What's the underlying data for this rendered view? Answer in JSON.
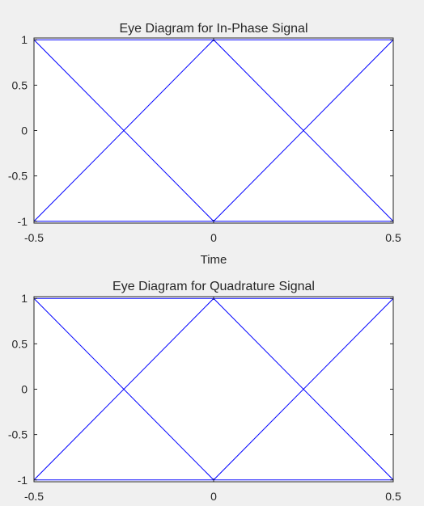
{
  "colors": {
    "background": "#f0f0f0",
    "plot_background": "#ffffff",
    "axis": "#262626",
    "trace": "#0000ff"
  },
  "chart_data": [
    {
      "type": "line",
      "title": "Eye Diagram for In-Phase Signal",
      "xlabel": "Time",
      "ylabel": "",
      "xlim": [
        -0.5,
        0.5
      ],
      "ylim": [
        -1.02,
        1.02
      ],
      "xticks": [
        -0.5,
        0,
        0.5
      ],
      "xtick_labels": [
        "-0.5",
        "0",
        "0.5"
      ],
      "yticks": [
        1,
        0.5,
        0,
        -0.5,
        -1
      ],
      "ytick_labels": [
        "1",
        "0.5",
        "0",
        "-0.5",
        "-1"
      ],
      "grid": false,
      "series": [
        {
          "x": [
            -0.5,
            0,
            0.5
          ],
          "y": [
            1,
            1,
            1
          ]
        },
        {
          "x": [
            -0.5,
            0,
            0.5
          ],
          "y": [
            1,
            -1,
            1
          ]
        },
        {
          "x": [
            -0.5,
            0,
            0.5
          ],
          "y": [
            -1,
            1,
            -1
          ]
        },
        {
          "x": [
            -0.5,
            0,
            0.5
          ],
          "y": [
            -1,
            -1,
            -1
          ]
        }
      ]
    },
    {
      "type": "line",
      "title": "Eye Diagram for Quadrature Signal",
      "xlabel": "",
      "ylabel": "",
      "xlim": [
        -0.5,
        0.5
      ],
      "ylim": [
        -1.02,
        1.02
      ],
      "xticks": [
        -0.5,
        0,
        0.5
      ],
      "xtick_labels": [
        "-0.5",
        "0",
        "0.5"
      ],
      "yticks": [
        1,
        0.5,
        0,
        -0.5,
        -1
      ],
      "ytick_labels": [
        "1",
        "0.5",
        "0",
        "-0.5",
        "-1"
      ],
      "grid": false,
      "series": [
        {
          "x": [
            -0.5,
            0,
            0.5
          ],
          "y": [
            1,
            1,
            1
          ]
        },
        {
          "x": [
            -0.5,
            0,
            0.5
          ],
          "y": [
            1,
            -1,
            1
          ]
        },
        {
          "x": [
            -0.5,
            0,
            0.5
          ],
          "y": [
            -1,
            1,
            -1
          ]
        },
        {
          "x": [
            -0.5,
            0,
            0.5
          ],
          "y": [
            -1,
            -1,
            -1
          ]
        }
      ]
    }
  ]
}
